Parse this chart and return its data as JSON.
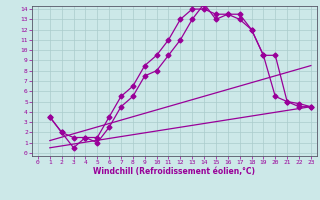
{
  "xlabel": "Windchill (Refroidissement éolien,°C)",
  "bg_color": "#cce8e8",
  "grid_color": "#aacccc",
  "line_color": "#990099",
  "xlim": [
    -0.5,
    23.5
  ],
  "ylim": [
    -0.3,
    14.3
  ],
  "xticks": [
    0,
    1,
    2,
    3,
    4,
    5,
    6,
    7,
    8,
    9,
    10,
    11,
    12,
    13,
    14,
    15,
    16,
    17,
    18,
    19,
    20,
    21,
    22,
    23
  ],
  "yticks": [
    0,
    1,
    2,
    3,
    4,
    5,
    6,
    7,
    8,
    9,
    10,
    11,
    12,
    13,
    14
  ],
  "series1_x": [
    1,
    2,
    3,
    4,
    5,
    6,
    7,
    8,
    9,
    10,
    11,
    12,
    13,
    14,
    15,
    16,
    17,
    18,
    19,
    20,
    21,
    22,
    23
  ],
  "series1_y": [
    3.5,
    2.0,
    1.5,
    1.5,
    1.5,
    3.5,
    5.5,
    6.5,
    8.5,
    9.5,
    11.0,
    13.0,
    14.0,
    14.0,
    13.5,
    13.5,
    13.0,
    12.0,
    9.5,
    9.5,
    5.0,
    4.8,
    4.5
  ],
  "series2_x": [
    1,
    2,
    3,
    4,
    5,
    6,
    7,
    8,
    9,
    10,
    11,
    12,
    13,
    14,
    15,
    16,
    17,
    18,
    19,
    20,
    21,
    22,
    23
  ],
  "series2_y": [
    3.5,
    2.0,
    0.5,
    1.5,
    1.0,
    2.5,
    4.5,
    5.5,
    7.5,
    8.0,
    9.5,
    11.0,
    13.0,
    14.5,
    13.0,
    13.5,
    13.5,
    12.0,
    9.5,
    5.5,
    5.0,
    4.5,
    4.5
  ],
  "series3_x": [
    1,
    23
  ],
  "series3_y": [
    1.2,
    8.5
  ],
  "series4_x": [
    1,
    23
  ],
  "series4_y": [
    0.5,
    4.5
  ],
  "marker": "D",
  "markersize": 2.5,
  "linewidth": 0.9,
  "tick_fontsize": 4.5,
  "label_fontsize": 5.5
}
